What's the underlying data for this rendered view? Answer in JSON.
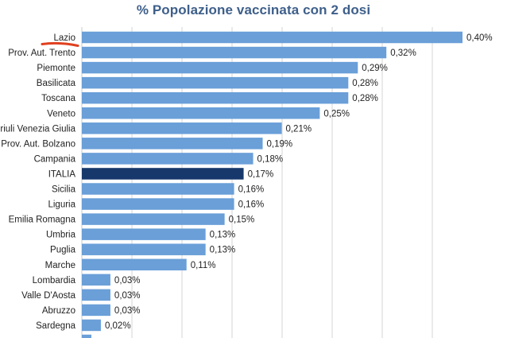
{
  "chart_data": {
    "type": "bar",
    "orientation": "horizontal",
    "title": "% Popolazione  vaccinata con 2 dosi",
    "categories": [
      "Lazio",
      "Prov. Aut. Trento",
      "Piemonte",
      "Basilicata",
      "Toscana",
      "Veneto",
      "Friuli Venezia Giulia",
      "Prov. Aut. Bolzano",
      "Campania",
      "ITALIA",
      "Sicilia",
      "Liguria",
      "Emilia Romagna",
      "Umbria",
      "Puglia",
      "Marche",
      "Lombardia",
      "Valle D'Aosta",
      "Abruzzo",
      "Sardegna",
      ""
    ],
    "values": [
      0.4,
      0.32,
      0.29,
      0.28,
      0.28,
      0.25,
      0.21,
      0.19,
      0.18,
      0.17,
      0.16,
      0.16,
      0.15,
      0.13,
      0.13,
      0.11,
      0.03,
      0.03,
      0.03,
      0.02,
      0.01
    ],
    "value_labels": [
      "0,40%",
      "0,32%",
      "0,29%",
      "0,28%",
      "0,28%",
      "0,25%",
      "0,21%",
      "0,19%",
      "0,18%",
      "0,17%",
      "0,16%",
      "0,16%",
      "0,15%",
      "0,13%",
      "0,13%",
      "0,11%",
      "0,03%",
      "0,03%",
      "0,03%",
      "0,02%",
      ""
    ],
    "xlim": [
      0,
      0.4
    ],
    "grid": true,
    "legend": "none",
    "highlight_category": "ITALIA",
    "colors": {
      "bar": "#6a9fd8",
      "highlight_bar": "#17386b",
      "title": "#3e5f8a",
      "grid": "#d4d4d4",
      "axis": "#c8c8c8",
      "annotation_underline": "#e0401f"
    }
  }
}
